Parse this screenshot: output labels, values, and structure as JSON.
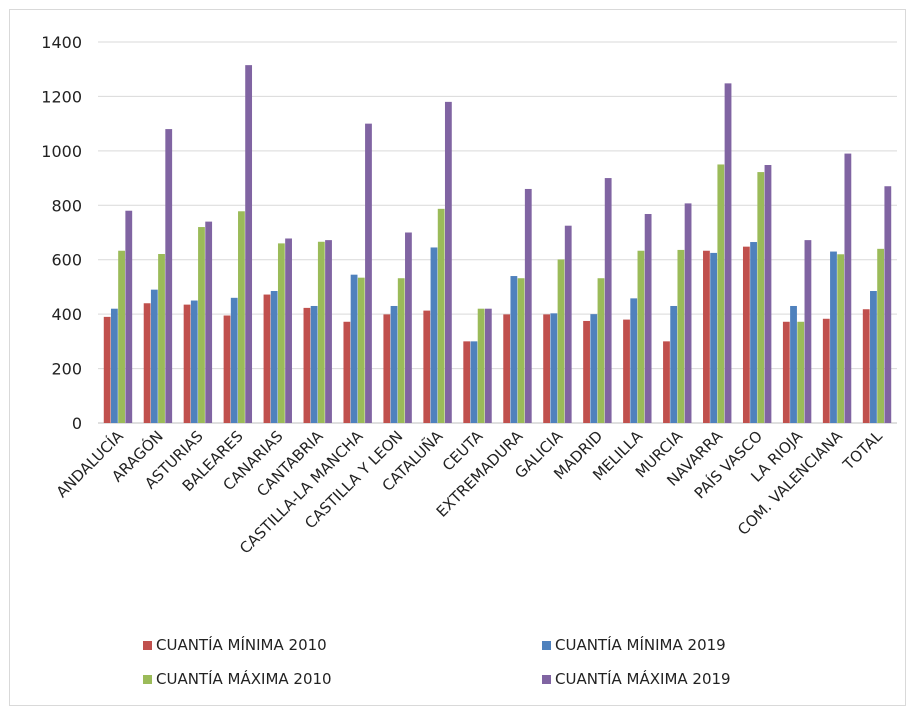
{
  "chart_data": {
    "type": "bar",
    "title": "",
    "xlabel": "",
    "ylabel": "",
    "ylim": [
      0,
      1400
    ],
    "yticks": [
      0,
      200,
      400,
      600,
      800,
      1000,
      1200,
      1400
    ],
    "grid": "horizontal",
    "legend_position": "bottom",
    "categories": [
      "ANDALUCÍA",
      "ARAGÓN",
      "ASTURIAS",
      "BALEARES",
      "CANARIAS",
      "CANTABRIA",
      "CASTILLA-LA MANCHA",
      "CASTILLA Y LEON",
      "CATALUÑA",
      "CEUTA",
      "EXTREMADURA",
      "GALICIA",
      "MADRID",
      "MELILLA",
      "MURCIA",
      "NAVARRA",
      "PAÍS VASCO",
      "LA RIOJA",
      "COM. VALENCIANA",
      "TOTAL"
    ],
    "series": [
      {
        "name": "CUANTÍA MÍNIMA 2010",
        "color": "#c0504d",
        "values": [
          390,
          440,
          435,
          395,
          472,
          423,
          372,
          399,
          413,
          300,
          399,
          399,
          375,
          380,
          300,
          633,
          648,
          372,
          383,
          418
        ]
      },
      {
        "name": "CUANTÍA MÍNIMA 2019",
        "color": "#4f81bd",
        "values": [
          420,
          490,
          450,
          460,
          485,
          430,
          545,
          430,
          645,
          300,
          540,
          403,
          400,
          458,
          430,
          625,
          665,
          430,
          630,
          485
        ]
      },
      {
        "name": "CUANTÍA MÁXIMA 2010",
        "color": "#9bbb59",
        "values": [
          633,
          621,
          720,
          778,
          660,
          666,
          534,
          532,
          787,
          420,
          532,
          601,
          532,
          633,
          636,
          950,
          922,
          372,
          620,
          640
        ]
      },
      {
        "name": "CUANTÍA MÁXIMA 2019",
        "color": "#8064a2",
        "values": [
          780,
          1080,
          740,
          1315,
          678,
          672,
          1100,
          700,
          1180,
          420,
          860,
          725,
          900,
          768,
          807,
          1248,
          948,
          672,
          990,
          870
        ]
      }
    ]
  }
}
